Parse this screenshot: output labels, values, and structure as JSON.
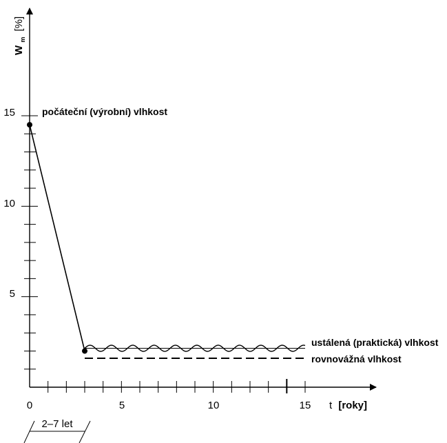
{
  "chart_data": {
    "type": "line",
    "ylabel_main": "W",
    "ylabel_sub": "m",
    "ylabel_unit": "[%]",
    "xlabel_t": "t",
    "xlabel_unit": "[roky]",
    "xlim": [
      0,
      15
    ],
    "ylim": [
      0,
      15
    ],
    "x_ticks": [
      "0",
      "5",
      "10",
      "15"
    ],
    "y_ticks": [
      "5",
      "10",
      "15"
    ],
    "series": [
      {
        "x": [
          0,
          3
        ],
        "y": [
          14.5,
          2.0
        ]
      }
    ],
    "steady_level": 2.15,
    "equilibrium_level": 1.6,
    "steady_x_range": [
      3,
      15
    ],
    "annotations": {
      "initial": "počáteční (výrobní) vlhkost",
      "steady": "ustálená (praktická) vlhkost",
      "equilibrium": "rovnovážná vlhkost",
      "period": "2–7 let"
    },
    "period_x_range": [
      0,
      3
    ]
  },
  "colors": {
    "ink": "#000000"
  }
}
